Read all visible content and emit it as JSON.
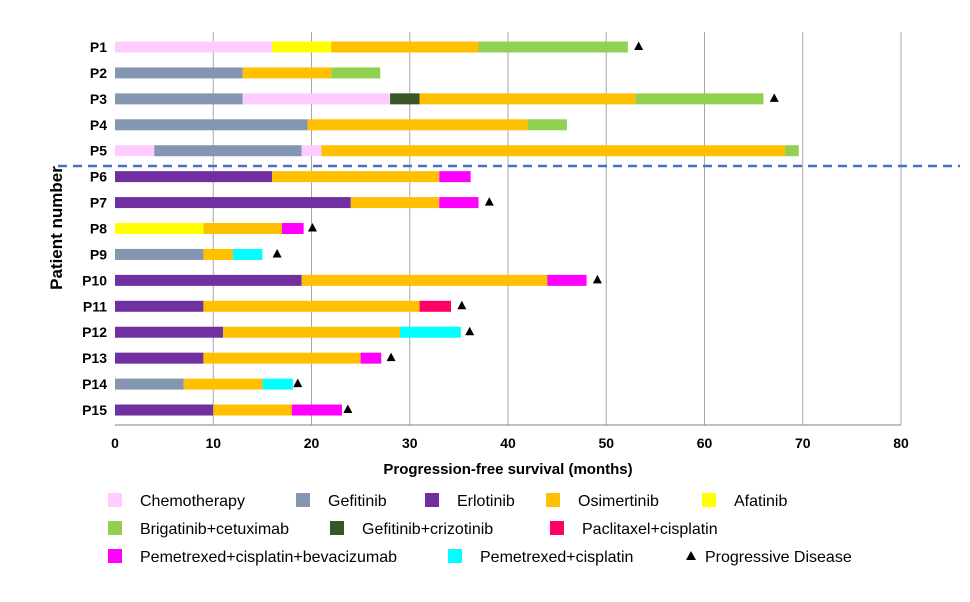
{
  "chart_data": {
    "type": "bar",
    "orientation": "horizontal",
    "stacked": true,
    "xlabel": "Progression-free survival (months)",
    "ylabel": "Patient number",
    "xlim": [
      0,
      80
    ],
    "xticks": [
      0,
      10,
      20,
      30,
      40,
      50,
      60,
      70,
      80
    ],
    "grid": "vertical",
    "categories": [
      "P1",
      "P2",
      "P3",
      "P4",
      "P5",
      "P6",
      "P7",
      "P8",
      "P9",
      "P10",
      "P11",
      "P12",
      "P13",
      "P14",
      "P15"
    ],
    "divider_after": "P5",
    "treatments": [
      {
        "key": "chemo",
        "name": "Chemotherapy",
        "color": "#FFCCFF"
      },
      {
        "key": "gef",
        "name": "Gefitinib",
        "color": "#8496B0"
      },
      {
        "key": "erl",
        "name": "Erlotinib",
        "color": "#7030A0"
      },
      {
        "key": "osi",
        "name": "Osimertinib",
        "color": "#FFC000"
      },
      {
        "key": "afa",
        "name": "Afatinib",
        "color": "#FFFF00"
      },
      {
        "key": "brig",
        "name": "Brigatinib+cetuximab",
        "color": "#92D050"
      },
      {
        "key": "gefcri",
        "name": "Gefitinib+crizotinib",
        "color": "#375623"
      },
      {
        "key": "pacl",
        "name": "Paclitaxel+cisplatin",
        "color": "#FF0066"
      },
      {
        "key": "pemb",
        "name": "Pemetrexed+cisplatin+bevacizumab",
        "color": "#FF00FF"
      },
      {
        "key": "pem",
        "name": "Pemetrexed+cisplatin",
        "color": "#00FFFF"
      }
    ],
    "progressive_disease_label": "Progressive Disease",
    "patients": [
      {
        "id": "P1",
        "segments": [
          [
            "chemo",
            0,
            16
          ],
          [
            "afa",
            16,
            22
          ],
          [
            "osi",
            22,
            37
          ],
          [
            "brig",
            37,
            52.2
          ]
        ],
        "pd": 53.3
      },
      {
        "id": "P2",
        "segments": [
          [
            "gef",
            0,
            13
          ],
          [
            "osi",
            13,
            22
          ],
          [
            "brig",
            22,
            27
          ]
        ],
        "pd": null
      },
      {
        "id": "P3",
        "segments": [
          [
            "gef",
            0,
            13
          ],
          [
            "chemo",
            13,
            28
          ],
          [
            "gefcri",
            28,
            31
          ],
          [
            "osi",
            31,
            53
          ],
          [
            "brig",
            53,
            66
          ]
        ],
        "pd": 67.1
      },
      {
        "id": "P4",
        "segments": [
          [
            "gef",
            0,
            19.6
          ],
          [
            "osi",
            19.6,
            42
          ],
          [
            "brig",
            42,
            46
          ]
        ],
        "pd": null
      },
      {
        "id": "P5",
        "segments": [
          [
            "chemo",
            0,
            4
          ],
          [
            "gef",
            4,
            19
          ],
          [
            "chemo",
            19,
            21
          ],
          [
            "osi",
            21,
            68.2
          ],
          [
            "brig",
            68.2,
            69.6
          ]
        ],
        "pd": null
      },
      {
        "id": "P6",
        "segments": [
          [
            "erl",
            0,
            16
          ],
          [
            "osi",
            16,
            33
          ],
          [
            "pemb",
            33,
            36.2
          ]
        ],
        "pd": null
      },
      {
        "id": "P7",
        "segments": [
          [
            "erl",
            0,
            24
          ],
          [
            "osi",
            24,
            33
          ],
          [
            "pemb",
            33,
            37
          ]
        ],
        "pd": 38.1
      },
      {
        "id": "P8",
        "segments": [
          [
            "afa",
            0,
            9
          ],
          [
            "osi",
            9,
            17
          ],
          [
            "pemb",
            17,
            19.2
          ]
        ],
        "pd": 20.1
      },
      {
        "id": "P9",
        "segments": [
          [
            "gef",
            0,
            9
          ],
          [
            "osi",
            9,
            12
          ],
          [
            "pem",
            12,
            15
          ]
        ],
        "pd": 16.5
      },
      {
        "id": "P10",
        "segments": [
          [
            "erl",
            0,
            19
          ],
          [
            "osi",
            19,
            44
          ],
          [
            "pemb",
            44,
            48
          ]
        ],
        "pd": 49.1
      },
      {
        "id": "P11",
        "segments": [
          [
            "erl",
            0,
            9
          ],
          [
            "osi",
            9,
            31
          ],
          [
            "pacl",
            31,
            34.2
          ]
        ],
        "pd": 35.3
      },
      {
        "id": "P12",
        "segments": [
          [
            "erl",
            0,
            11
          ],
          [
            "osi",
            11,
            29
          ],
          [
            "pem",
            29,
            35.2
          ]
        ],
        "pd": 36.1
      },
      {
        "id": "P13",
        "segments": [
          [
            "erl",
            0,
            9
          ],
          [
            "osi",
            9,
            25
          ],
          [
            "pemb",
            25,
            27.1
          ]
        ],
        "pd": 28.1
      },
      {
        "id": "P14",
        "segments": [
          [
            "gef",
            0,
            7
          ],
          [
            "osi",
            7,
            15
          ],
          [
            "pem",
            15,
            18.1
          ]
        ],
        "pd": 18.6
      },
      {
        "id": "P15",
        "segments": [
          [
            "erl",
            0,
            10
          ],
          [
            "osi",
            10,
            18
          ],
          [
            "pemb",
            18,
            23.1
          ]
        ],
        "pd": 23.7
      }
    ]
  }
}
